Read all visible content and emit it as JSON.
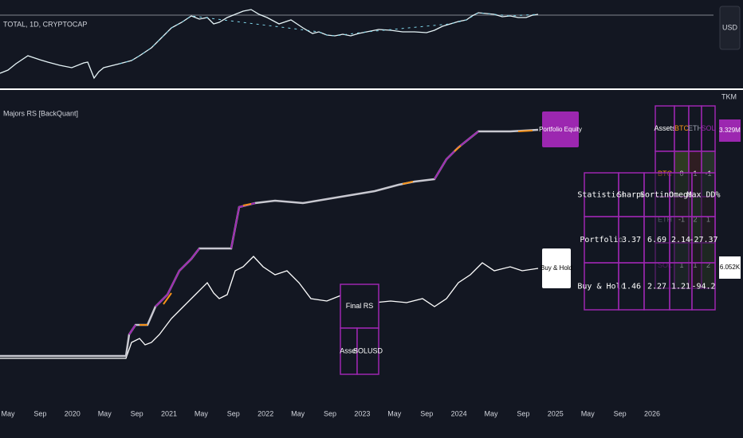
{
  "top_pane": {
    "symbol": "TOTAL, 1D, CRYPTOCAP",
    "currency": "USD"
  },
  "bottom_pane": {
    "indicator": "Majors RS [BackQuant]",
    "scale_label": "TKM",
    "portfolio_label": "Portfolio Equity",
    "buy_hold_label": "Buy & Hold",
    "portfolio_tag": "3.329M",
    "buy_hold_tag": "6.052K"
  },
  "matrix_table": {
    "header": [
      "Assets",
      "BTC",
      "ETH",
      "SOL"
    ],
    "rows": [
      [
        "BTC",
        "0",
        "1",
        "-1"
      ],
      [
        "ETH",
        "-1",
        "2",
        "1"
      ],
      [
        "SOL",
        "1",
        "1",
        "2"
      ]
    ]
  },
  "stats_table": {
    "header": [
      "Statistics",
      "Sharpe",
      "Sortino",
      "Omega",
      "Max DD%"
    ],
    "rows": [
      [
        "Portfolio",
        "3.37",
        "6.69",
        "2.14",
        "-27.37"
      ],
      [
        "Buy & Hold",
        "1.46",
        "2.27",
        "1.21",
        "-94.2"
      ]
    ]
  },
  "final_table": {
    "title": "Final RS",
    "asset_label": "Asset",
    "asset": "SOLUSD"
  },
  "x_axis": {
    "labels": [
      "May",
      "Sep",
      "2020",
      "May",
      "Sep",
      "2021",
      "May",
      "Sep",
      "2022",
      "May",
      "Sep",
      "2023",
      "May",
      "Sep",
      "2024",
      "May",
      "Sep",
      "2025",
      "May",
      "Sep",
      "2026"
    ]
  }
}
